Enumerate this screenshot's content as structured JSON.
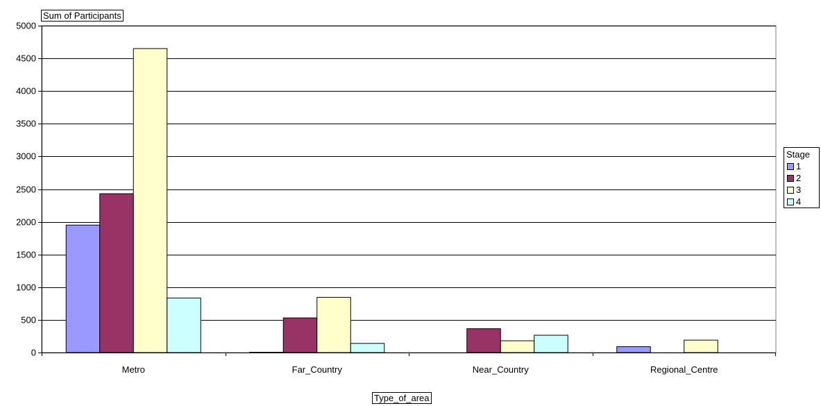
{
  "chart_data": {
    "type": "bar",
    "y_title": "Sum of Participants",
    "x_title": "Type_of_area",
    "categories": [
      "Metro",
      "Far_Country",
      "Near_Country",
      "Regional_Centre"
    ],
    "series": [
      {
        "name": "1",
        "color": "#9999ff",
        "values": [
          1950,
          5,
          0,
          90
        ]
      },
      {
        "name": "2",
        "color": "#993366",
        "values": [
          2430,
          530,
          365,
          0
        ]
      },
      {
        "name": "3",
        "color": "#ffffcc",
        "values": [
          4650,
          845,
          180,
          190
        ]
      },
      {
        "name": "4",
        "color": "#ccffff",
        "values": [
          835,
          140,
          265,
          0
        ]
      }
    ],
    "ylim": [
      0,
      5000
    ],
    "yticks": [
      "0",
      "500",
      "1000",
      "1500",
      "2000",
      "2500",
      "3000",
      "3500",
      "4000",
      "4500",
      "5000"
    ],
    "legend_title": "Stage",
    "legend_placement": "right",
    "grid": true
  }
}
